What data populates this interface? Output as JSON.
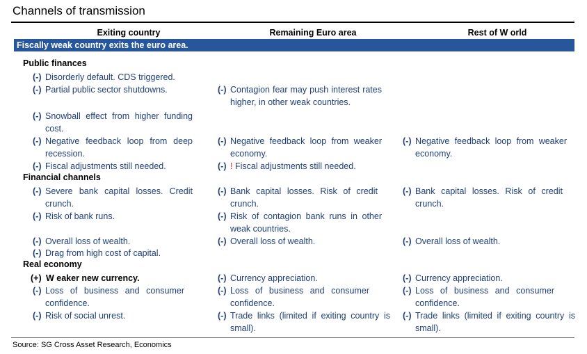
{
  "title": "Channels of transmission",
  "columns": {
    "exiting": "Exiting country",
    "remaining": "Remaining Euro area",
    "rest": "Rest of W orld"
  },
  "banner": "Fiscally weak  country exits the euro area.",
  "sections": {
    "public_finances": "Public finances",
    "financial_channels": "Financial channels",
    "real_economy": "Real economy"
  },
  "rows": {
    "pf1": {
      "exiting": {
        "sign": "(-)",
        "text": "Disorderly default.  CDS triggered."
      }
    },
    "pf2": {
      "exiting": {
        "sign": "(-)",
        "text": "Partial public sector shutdowns."
      },
      "remaining": {
        "sign": "(-)",
        "text": "Contagion fear may push interest rates higher, in other  weak  countries."
      }
    },
    "pf3": {
      "exiting": {
        "sign": "(-)",
        "text": "Snowball  effect  from higher funding cost."
      }
    },
    "pf4": {
      "exiting": {
        "sign": "(-)",
        "text": "Negative feedback  loop from deep recession."
      },
      "remaining": {
        "sign": "(-)",
        "text": "Negative feedback  loop from weaker economy."
      },
      "rest": {
        "sign": "(-)",
        "text": "Negative feedback  loop from weaker economy."
      }
    },
    "pf5": {
      "exiting": {
        "sign": "(-)",
        "text": "Fiscal adjustments  still needed."
      },
      "remaining": {
        "sign": "(-)",
        "mark": "!",
        "text": "Fiscal adjustments  still needed."
      }
    },
    "fc1": {
      "exiting": {
        "sign": "(-)",
        "text": "Severe  bank capital losses. Credit crunch."
      },
      "remaining": {
        "sign": "(-)",
        "text": "Bank capital  losses. Risk of credit crunch."
      },
      "rest": {
        "sign": "(-)",
        "text": "Bank capital  losses. Risk of credit crunch."
      }
    },
    "fc2": {
      "exiting": {
        "sign": "(-)",
        "text": "Risk of bank runs."
      },
      "remaining": {
        "sign": "(-)",
        "text": "Risk of contagion  bank runs in other weak countries."
      }
    },
    "fc3": {
      "exiting": {
        "sign": "(-)",
        "text": "Overall  loss of wealth."
      },
      "remaining": {
        "sign": "(-)",
        "text": "Overall  loss of wealth."
      },
      "rest": {
        "sign": "(-)",
        "text": "Overall  loss of wealth."
      }
    },
    "fc4": {
      "exiting": {
        "sign": "(-)",
        "text": "Drag from high cost of capital."
      }
    },
    "re1": {
      "exiting": {
        "sign": "(+)",
        "text": "W eaker new currency."
      },
      "remaining": {
        "sign": "(-)",
        "text": "Currency appreciation."
      },
      "rest": {
        "sign": "(-)",
        "text": "Currency appreciation."
      }
    },
    "re2": {
      "exiting": {
        "sign": "(-)",
        "text": "Loss of business  and  consumer confidence."
      },
      "remaining": {
        "sign": "(-)",
        "text": "Loss of business  and  consumer confidence."
      },
      "rest": {
        "sign": "(-)",
        "text": "Loss of business  and  consumer confidence."
      }
    },
    "re3": {
      "exiting": {
        "sign": "(-)",
        "text": "Risk of social unrest."
      },
      "remaining": {
        "sign": "(-)",
        "text": "Trade links (limited  if exiting country  is small)."
      },
      "rest": {
        "sign": "(-)",
        "text": "Trade links (limited  if exiting country  is small)."
      }
    }
  },
  "source": "Source: SG Cross Asset Research, Economics",
  "colors": {
    "banner": "#27579a",
    "item_text": "#1f3f7a",
    "alert": "#e02020"
  }
}
